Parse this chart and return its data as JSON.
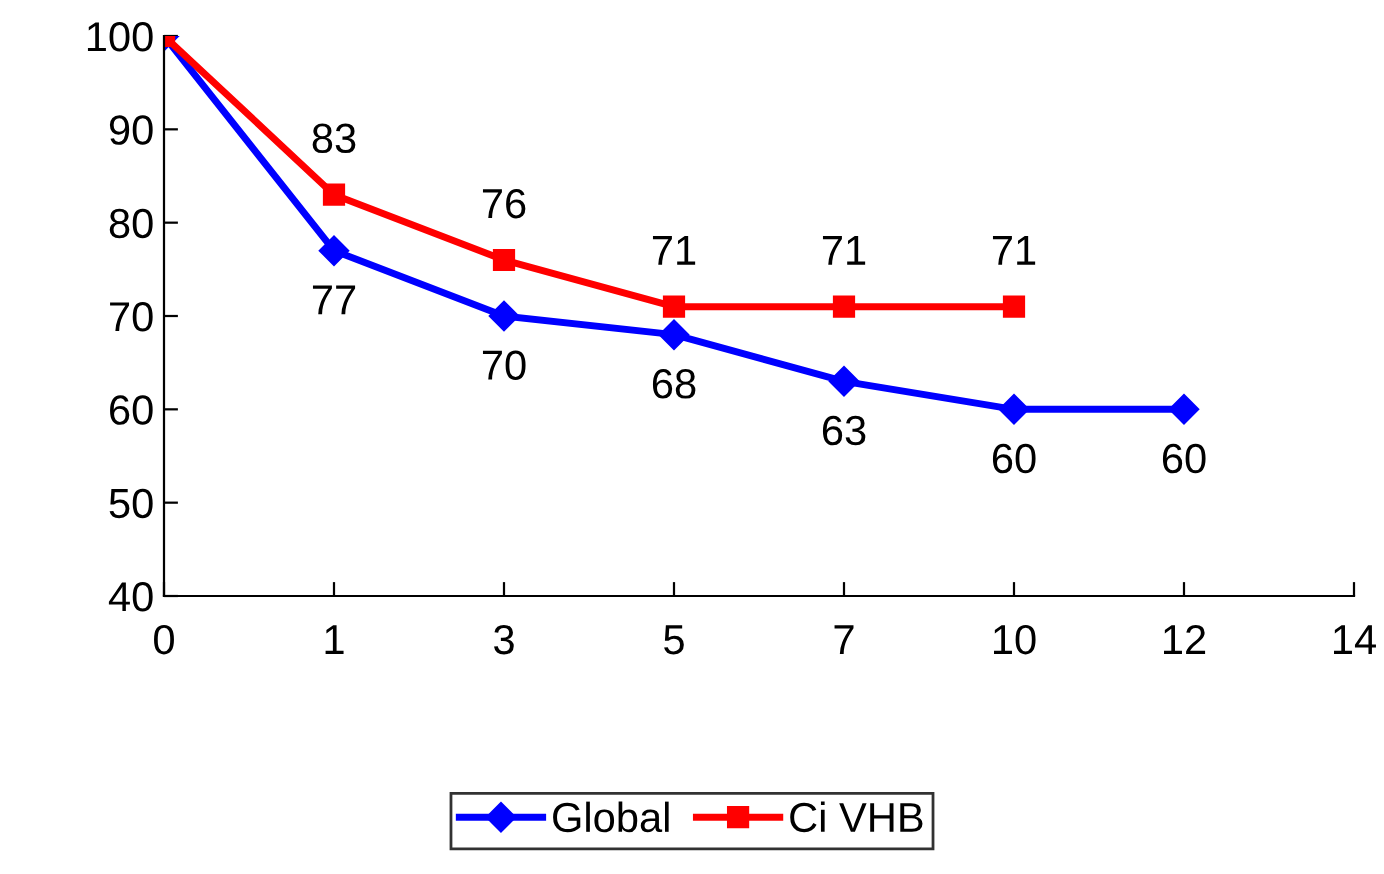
{
  "chart_data": {
    "type": "line",
    "categories": [
      "0",
      "1",
      "3",
      "5",
      "7",
      "10",
      "12",
      "14"
    ],
    "series": [
      {
        "name": "Global",
        "color": "#0000ff",
        "marker": "diamond",
        "values": [
          100,
          77,
          70,
          68,
          63,
          60,
          60,
          null
        ],
        "value_labels": [
          null,
          "77",
          "70",
          "68",
          "63",
          "60",
          "60",
          null
        ]
      },
      {
        "name": "Ci VHB",
        "color": "#ff0000",
        "marker": "square",
        "values": [
          100,
          83,
          76,
          71,
          71,
          71,
          null,
          null
        ],
        "value_labels": [
          null,
          "83",
          "76",
          "71",
          "71",
          "71",
          null,
          null
        ]
      }
    ],
    "ylim": [
      40,
      100
    ],
    "yticks": [
      40,
      50,
      60,
      70,
      80,
      90,
      100
    ],
    "grid": false,
    "legend": "bottom"
  }
}
